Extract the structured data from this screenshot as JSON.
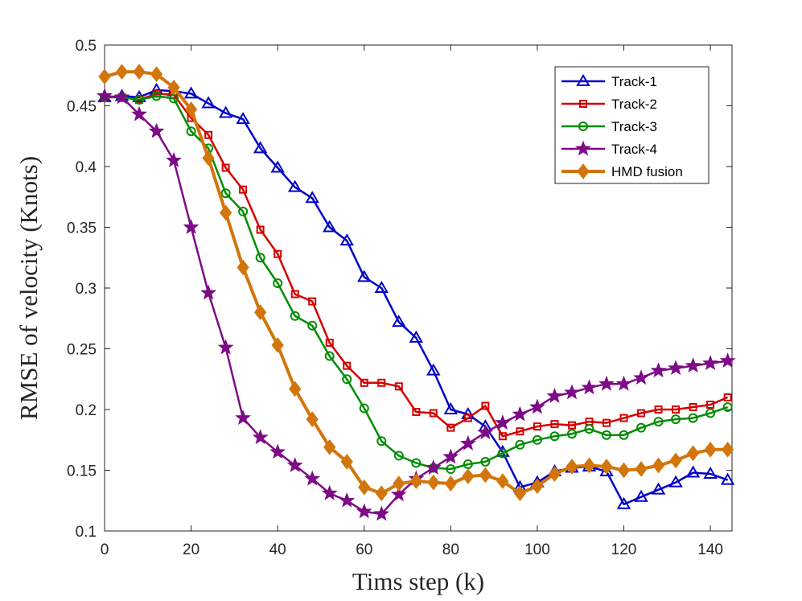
{
  "chart_data": {
    "type": "line",
    "title": "",
    "xlabel": "Tims step (k)",
    "ylabel": "RMSE of velocity (Knots)",
    "xlim": [
      0,
      145
    ],
    "ylim": [
      0.1,
      0.5
    ],
    "xticks": [
      0,
      20,
      40,
      60,
      80,
      100,
      120,
      140
    ],
    "yticks": [
      0.1,
      0.15,
      0.2,
      0.25,
      0.3,
      0.35,
      0.4,
      0.45,
      0.5
    ],
    "xtick_labels": [
      "0",
      "20",
      "40",
      "60",
      "80",
      "100",
      "120",
      "140"
    ],
    "ytick_labels": [
      "0.1",
      "0.15",
      "0.2",
      "0.25",
      "0.3",
      "0.35",
      "0.4",
      "0.45",
      "0.5"
    ],
    "grid": false,
    "legend_position": "top-right",
    "x": [
      0,
      4,
      8,
      12,
      16,
      20,
      24,
      28,
      32,
      36,
      40,
      44,
      48,
      52,
      56,
      60,
      64,
      68,
      72,
      76,
      80,
      84,
      88,
      92,
      96,
      100,
      104,
      108,
      112,
      116,
      120,
      124,
      128,
      132,
      136,
      140,
      144
    ],
    "series": [
      {
        "name": "Track-1",
        "color": "#0000c8",
        "marker": "triangle",
        "values": [
          0.457,
          0.458,
          0.457,
          0.463,
          0.462,
          0.46,
          0.452,
          0.444,
          0.439,
          0.415,
          0.399,
          0.383,
          0.374,
          0.35,
          0.339,
          0.309,
          0.3,
          0.272,
          0.259,
          0.232,
          0.2,
          0.196,
          0.186,
          0.165,
          0.136,
          0.14,
          0.149,
          0.152,
          0.153,
          0.149,
          0.122,
          0.128,
          0.134,
          0.14,
          0.148,
          0.147,
          0.142
        ]
      },
      {
        "name": "Track-2",
        "color": "#d40000",
        "marker": "square",
        "values": [
          0.457,
          0.457,
          0.455,
          0.46,
          0.459,
          0.44,
          0.426,
          0.399,
          0.381,
          0.348,
          0.328,
          0.295,
          0.289,
          0.255,
          0.236,
          0.222,
          0.222,
          0.219,
          0.198,
          0.197,
          0.185,
          0.193,
          0.203,
          0.178,
          0.182,
          0.186,
          0.188,
          0.187,
          0.19,
          0.189,
          0.193,
          0.197,
          0.2,
          0.2,
          0.202,
          0.204,
          0.21
        ]
      },
      {
        "name": "Track-3",
        "color": "#008c00",
        "marker": "circle",
        "values": [
          0.457,
          0.457,
          0.455,
          0.458,
          0.456,
          0.429,
          0.415,
          0.378,
          0.363,
          0.325,
          0.304,
          0.277,
          0.269,
          0.244,
          0.225,
          0.201,
          0.174,
          0.162,
          0.156,
          0.152,
          0.151,
          0.155,
          0.157,
          0.164,
          0.171,
          0.175,
          0.178,
          0.18,
          0.184,
          0.179,
          0.179,
          0.185,
          0.19,
          0.192,
          0.193,
          0.197,
          0.202
        ]
      },
      {
        "name": "Track-4",
        "color": "#7d0a87",
        "marker": "star",
        "values": [
          0.458,
          0.457,
          0.443,
          0.429,
          0.405,
          0.35,
          0.296,
          0.251,
          0.193,
          0.177,
          0.165,
          0.154,
          0.143,
          0.131,
          0.125,
          0.116,
          0.114,
          0.13,
          0.143,
          0.152,
          0.161,
          0.172,
          0.181,
          0.189,
          0.196,
          0.202,
          0.211,
          0.214,
          0.218,
          0.221,
          0.221,
          0.226,
          0.232,
          0.234,
          0.236,
          0.238,
          0.24
        ]
      },
      {
        "name": "HMD fusion",
        "color": "#d2750a",
        "marker": "diamond",
        "values": [
          0.474,
          0.478,
          0.478,
          0.476,
          0.465,
          0.447,
          0.407,
          0.362,
          0.317,
          0.28,
          0.253,
          0.217,
          0.192,
          0.169,
          0.157,
          0.136,
          0.131,
          0.139,
          0.141,
          0.14,
          0.139,
          0.145,
          0.146,
          0.141,
          0.131,
          0.137,
          0.147,
          0.153,
          0.154,
          0.153,
          0.15,
          0.151,
          0.154,
          0.158,
          0.164,
          0.167,
          0.167
        ]
      }
    ]
  }
}
